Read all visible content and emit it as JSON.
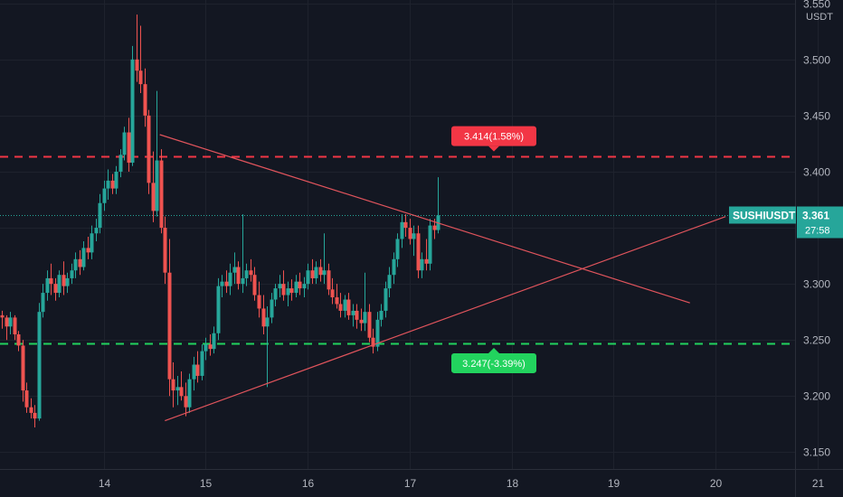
{
  "chart_data": {
    "type": "candlestick",
    "symbol": "SUSHIUSDT",
    "unit": "USDT",
    "last_price": "3.361",
    "countdown": "27:58",
    "x_ticks": [
      "14",
      "15",
      "16",
      "17",
      "18",
      "19",
      "20",
      "21"
    ],
    "y_ticks": [
      "3.150",
      "3.200",
      "3.250",
      "3.300",
      "3.350",
      "3.400",
      "3.450",
      "3.500",
      "3.550"
    ],
    "ylim": [
      3.135,
      3.553
    ],
    "grid": true,
    "levels": [
      {
        "name": "resistance",
        "price": 3.414,
        "label": "3.414(1.58%)",
        "color": "#f23645"
      },
      {
        "name": "support",
        "price": 3.247,
        "label": "3.247(-3.39%)",
        "color": "#22d35e"
      }
    ],
    "trendlines": [
      {
        "name": "upper",
        "from": [
          14.55,
          3.433
        ],
        "to": [
          19.75,
          3.283
        ],
        "color": "#e0545c"
      },
      {
        "name": "lower",
        "from": [
          14.6,
          3.178
        ],
        "to": [
          20.1,
          3.36
        ],
        "color": "#e0545c"
      }
    ],
    "colors": {
      "up": "#26a69a",
      "down": "#ef5350",
      "background": "#131722",
      "grid": "#1e222d",
      "label_bg": "#26a69a"
    },
    "candles": [
      [
        13.0,
        3.272,
        3.276,
        3.26,
        3.27
      ],
      [
        13.04,
        3.27,
        3.272,
        3.25,
        3.262
      ],
      [
        13.08,
        3.262,
        3.275,
        3.255,
        3.27
      ],
      [
        13.12,
        3.27,
        3.272,
        3.25,
        3.255
      ],
      [
        13.16,
        3.255,
        3.258,
        3.24,
        3.245
      ],
      [
        13.2,
        3.245,
        3.25,
        3.195,
        3.205
      ],
      [
        13.24,
        3.205,
        3.212,
        3.185,
        3.19
      ],
      [
        13.28,
        3.19,
        3.198,
        3.18,
        3.185
      ],
      [
        13.32,
        3.185,
        3.192,
        3.172,
        3.18
      ],
      [
        13.36,
        3.18,
        3.283,
        3.178,
        3.275
      ],
      [
        13.4,
        3.275,
        3.3,
        3.27,
        3.292
      ],
      [
        13.44,
        3.292,
        3.312,
        3.285,
        3.305
      ],
      [
        13.48,
        3.305,
        3.318,
        3.29,
        3.3
      ],
      [
        13.52,
        3.3,
        3.305,
        3.285,
        3.292
      ],
      [
        13.56,
        3.292,
        3.312,
        3.288,
        3.308
      ],
      [
        13.6,
        3.308,
        3.32,
        3.29,
        3.298
      ],
      [
        13.64,
        3.298,
        3.31,
        3.292,
        3.305
      ],
      [
        13.68,
        3.305,
        3.318,
        3.3,
        3.312
      ],
      [
        13.72,
        3.312,
        3.328,
        3.305,
        3.322
      ],
      [
        13.76,
        3.322,
        3.33,
        3.308,
        3.315
      ],
      [
        13.8,
        3.315,
        3.338,
        3.312,
        3.332
      ],
      [
        13.84,
        3.332,
        3.342,
        3.322,
        3.328
      ],
      [
        13.88,
        3.328,
        3.352,
        3.322,
        3.345
      ],
      [
        13.92,
        3.345,
        3.358,
        3.338,
        3.35
      ],
      [
        13.96,
        3.35,
        3.38,
        3.345,
        3.372
      ],
      [
        14.0,
        3.372,
        3.392,
        3.365,
        3.385
      ],
      [
        14.04,
        3.385,
        3.402,
        3.375,
        3.392
      ],
      [
        14.08,
        3.392,
        3.398,
        3.38,
        3.385
      ],
      [
        14.12,
        3.385,
        3.405,
        3.38,
        3.4
      ],
      [
        14.16,
        3.4,
        3.42,
        3.395,
        3.415
      ],
      [
        14.2,
        3.415,
        3.44,
        3.41,
        3.435
      ],
      [
        14.24,
        3.435,
        3.448,
        3.4,
        3.408
      ],
      [
        14.28,
        3.408,
        3.512,
        3.405,
        3.5
      ],
      [
        14.32,
        3.5,
        3.54,
        3.48,
        3.49
      ],
      [
        14.36,
        3.49,
        3.53,
        3.47,
        3.478
      ],
      [
        14.4,
        3.478,
        3.492,
        3.44,
        3.45
      ],
      [
        14.44,
        3.45,
        3.455,
        3.38,
        3.39
      ],
      [
        14.48,
        3.39,
        3.418,
        3.355,
        3.365
      ],
      [
        14.52,
        3.365,
        3.472,
        3.36,
        3.41
      ],
      [
        14.56,
        3.41,
        3.42,
        3.345,
        3.35
      ],
      [
        14.6,
        3.35,
        3.36,
        3.3,
        3.31
      ],
      [
        14.64,
        3.31,
        3.34,
        3.2,
        3.215
      ],
      [
        14.68,
        3.215,
        3.23,
        3.19,
        3.205
      ],
      [
        14.72,
        3.205,
        3.218,
        3.192,
        3.208
      ],
      [
        14.76,
        3.208,
        3.222,
        3.196,
        3.2
      ],
      [
        14.8,
        3.2,
        3.212,
        3.182,
        3.19
      ],
      [
        14.84,
        3.19,
        3.22,
        3.185,
        3.215
      ],
      [
        14.88,
        3.215,
        3.235,
        3.205,
        3.228
      ],
      [
        14.92,
        3.228,
        3.24,
        3.212,
        3.218
      ],
      [
        14.96,
        3.218,
        3.246,
        3.214,
        3.24
      ],
      [
        15.0,
        3.24,
        3.252,
        3.232,
        3.246
      ],
      [
        15.04,
        3.246,
        3.255,
        3.236,
        3.242
      ],
      [
        15.08,
        3.242,
        3.262,
        3.238,
        3.256
      ],
      [
        15.12,
        3.256,
        3.305,
        3.25,
        3.298
      ],
      [
        15.16,
        3.298,
        3.308,
        3.288,
        3.302
      ],
      [
        15.2,
        3.302,
        3.312,
        3.292,
        3.298
      ],
      [
        15.24,
        3.298,
        3.318,
        3.29,
        3.31
      ],
      [
        15.28,
        3.31,
        3.328,
        3.3,
        3.315
      ],
      [
        15.32,
        3.315,
        3.32,
        3.295,
        3.3
      ],
      [
        15.36,
        3.3,
        3.362,
        3.292,
        3.305
      ],
      [
        15.4,
        3.305,
        3.318,
        3.298,
        3.312
      ],
      [
        15.44,
        3.312,
        3.322,
        3.302,
        3.308
      ],
      [
        15.48,
        3.308,
        3.315,
        3.285,
        3.29
      ],
      [
        15.52,
        3.29,
        3.302,
        3.27,
        3.278
      ],
      [
        15.56,
        3.278,
        3.29,
        3.255,
        3.262
      ],
      [
        15.6,
        3.262,
        3.28,
        3.208,
        3.27
      ],
      [
        15.64,
        3.27,
        3.292,
        3.265,
        3.286
      ],
      [
        15.68,
        3.286,
        3.3,
        3.28,
        3.296
      ],
      [
        15.72,
        3.296,
        3.308,
        3.288,
        3.3
      ],
      [
        15.76,
        3.3,
        3.312,
        3.285,
        3.29
      ],
      [
        15.8,
        3.29,
        3.302,
        3.28,
        3.296
      ],
      [
        15.84,
        3.296,
        3.304,
        3.285,
        3.292
      ],
      [
        15.88,
        3.292,
        3.308,
        3.288,
        3.302
      ],
      [
        15.92,
        3.302,
        3.31,
        3.29,
        3.296
      ],
      [
        15.96,
        3.296,
        3.306,
        3.288,
        3.3
      ],
      [
        16.0,
        3.3,
        3.318,
        3.295,
        3.312
      ],
      [
        16.04,
        3.312,
        3.322,
        3.3,
        3.305
      ],
      [
        16.08,
        3.305,
        3.32,
        3.3,
        3.315
      ],
      [
        16.12,
        3.315,
        3.322,
        3.302,
        3.308
      ],
      [
        16.16,
        3.308,
        3.345,
        3.3,
        3.312
      ],
      [
        16.2,
        3.312,
        3.318,
        3.29,
        3.295
      ],
      [
        16.24,
        3.295,
        3.305,
        3.282,
        3.288
      ],
      [
        16.28,
        3.288,
        3.3,
        3.278,
        3.282
      ],
      [
        16.32,
        3.282,
        3.292,
        3.27,
        3.276
      ],
      [
        16.36,
        3.276,
        3.29,
        3.27,
        3.286
      ],
      [
        16.4,
        3.286,
        3.292,
        3.268,
        3.272
      ],
      [
        16.44,
        3.272,
        3.282,
        3.262,
        3.276
      ],
      [
        16.48,
        3.276,
        3.282,
        3.26,
        3.268
      ],
      [
        16.52,
        3.268,
        3.278,
        3.258,
        3.265
      ],
      [
        16.56,
        3.265,
        3.31,
        3.258,
        3.275
      ],
      [
        16.6,
        3.275,
        3.282,
        3.248,
        3.252
      ],
      [
        16.64,
        3.252,
        3.26,
        3.238,
        3.244
      ],
      [
        16.68,
        3.244,
        3.275,
        3.24,
        3.268
      ],
      [
        16.72,
        3.268,
        3.282,
        3.262,
        3.276
      ],
      [
        16.76,
        3.276,
        3.302,
        3.27,
        3.296
      ],
      [
        16.8,
        3.296,
        3.315,
        3.288,
        3.308
      ],
      [
        16.84,
        3.308,
        3.328,
        3.3,
        3.322
      ],
      [
        16.88,
        3.322,
        3.345,
        3.315,
        3.34
      ],
      [
        16.92,
        3.34,
        3.362,
        3.332,
        3.355
      ],
      [
        16.96,
        3.355,
        3.362,
        3.342,
        3.35
      ],
      [
        17.0,
        3.35,
        3.358,
        3.335,
        3.34
      ],
      [
        17.04,
        3.34,
        3.352,
        3.325,
        3.345
      ],
      [
        17.08,
        3.345,
        3.352,
        3.305,
        3.312
      ],
      [
        17.12,
        3.312,
        3.328,
        3.305,
        3.322
      ],
      [
        17.16,
        3.322,
        3.34,
        3.312,
        3.318
      ],
      [
        17.2,
        3.318,
        3.358,
        3.312,
        3.352
      ],
      [
        17.24,
        3.352,
        3.358,
        3.34,
        3.348
      ],
      [
        17.28,
        3.348,
        3.395,
        3.345,
        3.361
      ]
    ]
  }
}
